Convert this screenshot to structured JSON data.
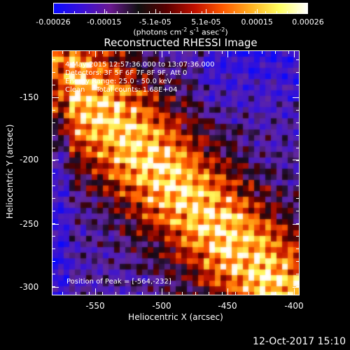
{
  "colorbar": {
    "tick_labels": [
      "-0.00026",
      "-0.00015",
      "-5.1e-05",
      "5.1e-05",
      "0.00015",
      "0.00026"
    ],
    "units_prefix": "(photons cm",
    "units_exp1": "-2",
    "units_mid1": " s",
    "units_exp2": "-1",
    "units_mid2": " asec",
    "units_exp3": "-2",
    "units_suffix": ")",
    "colors": [
      "#0a0aff",
      "#3a10d8",
      "#6a1890",
      "#101010",
      "#5a0000",
      "#c01000",
      "#ff5a00",
      "#ffb020",
      "#ffff60",
      "#ffffff"
    ]
  },
  "image_title": "Reconstructed RHESSI Image",
  "info": {
    "time_range": "4-May-2015 12:57:36.000 to 13:07:36.000",
    "detectors": "Detectors: 3F 5F 6F 7F 8F 9F, Att 0",
    "energy": "Energy Range: 25.0 - 50.0 keV",
    "clean": "Clean     Total counts: 1.68E+04"
  },
  "peak_label": "Position of Peak = [-564,-232]",
  "x_axis": {
    "title": "Heliocentric X (arcsec)",
    "tick_labels": [
      "-550",
      "-500",
      "-450",
      "-400"
    ]
  },
  "y_axis": {
    "title": "Heliocentric Y (arcsec)",
    "tick_labels": [
      "-150",
      "-200",
      "-250",
      "-300"
    ]
  },
  "timestamp": "12-Oct-2017 15:10"
}
